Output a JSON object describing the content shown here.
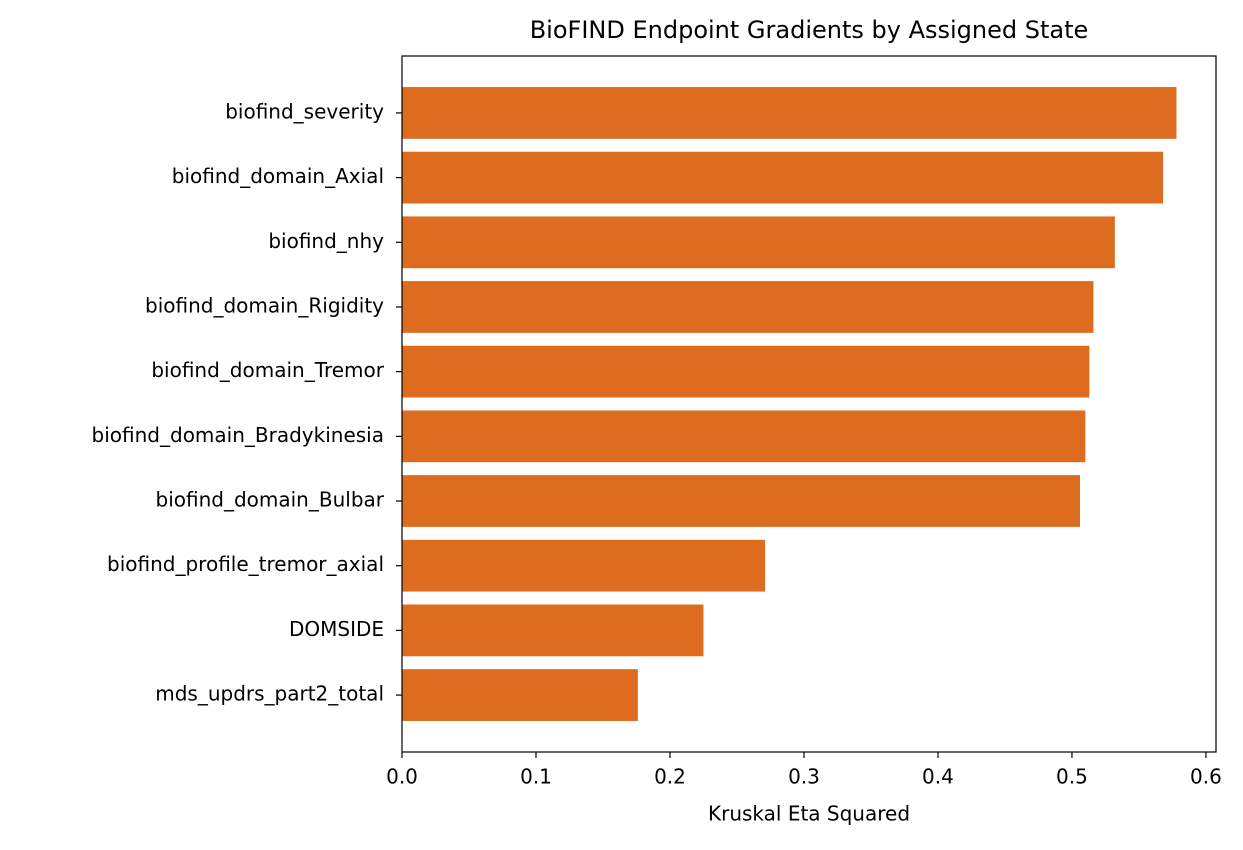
{
  "chart_data": {
    "type": "barh",
    "title": "BioFIND Endpoint Gradients by Assigned State",
    "x_label": "Kruskal Eta Squared",
    "categories": [
      "biofind_severity",
      "biofind_domain_Axial",
      "biofind_nhy",
      "biofind_domain_Rigidity",
      "biofind_domain_Tremor",
      "biofind_domain_Bradykinesia",
      "biofind_domain_Bulbar",
      "biofind_profile_tremor_axial",
      "DOMSIDE",
      "mds_updrs_part2_total"
    ],
    "values": [
      0.578,
      0.568,
      0.532,
      0.516,
      0.513,
      0.51,
      0.506,
      0.271,
      0.225,
      0.176
    ],
    "color": "#dd6b20",
    "xlim": [
      0,
      0.6075
    ],
    "xticks": [
      {
        "value": 0,
        "label": "0.0"
      },
      0.1,
      0.2,
      0.3,
      0.4,
      0.5,
      0.6
    ],
    "grid": false
  }
}
